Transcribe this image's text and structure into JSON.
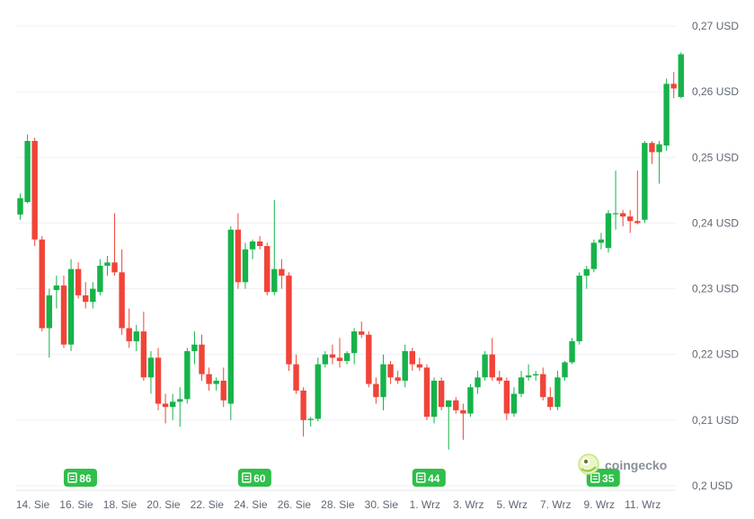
{
  "chart_data": {
    "type": "candlestick",
    "currency": "USD",
    "ylim": [
      0.2,
      0.27
    ],
    "y_ticks": [
      "0,2 USD",
      "0,21 USD",
      "0,22 USD",
      "0,23 USD",
      "0,24 USD",
      "0,25 USD",
      "0,26 USD",
      "0,27 USD"
    ],
    "y_tick_values": [
      0.2,
      0.21,
      0.22,
      0.23,
      0.24,
      0.25,
      0.26,
      0.27
    ],
    "x_ticks": [
      "14. Sie",
      "16. Sie",
      "18. Sie",
      "20. Sie",
      "22. Sie",
      "24. Sie",
      "26. Sie",
      "28. Sie",
      "30. Sie",
      "1. Wrz",
      "3. Wrz",
      "5. Wrz",
      "7. Wrz",
      "9. Wrz",
      "11. Wrz"
    ],
    "tick_every_candles": 6,
    "up_color": "#16b34a",
    "down_color": "#f04438",
    "candles": [
      [
        0.2413,
        0.2445,
        0.2405,
        0.2438
      ],
      [
        0.2432,
        0.2535,
        0.243,
        0.2525
      ],
      [
        0.2525,
        0.253,
        0.2365,
        0.2375
      ],
      [
        0.2375,
        0.238,
        0.2235,
        0.224
      ],
      [
        0.224,
        0.23,
        0.2195,
        0.229
      ],
      [
        0.2298,
        0.232,
        0.227,
        0.2305
      ],
      [
        0.2305,
        0.232,
        0.221,
        0.2215
      ],
      [
        0.2215,
        0.2345,
        0.2205,
        0.233
      ],
      [
        0.233,
        0.234,
        0.2285,
        0.229
      ],
      [
        0.229,
        0.231,
        0.227,
        0.228
      ],
      [
        0.228,
        0.231,
        0.227,
        0.23
      ],
      [
        0.2295,
        0.2345,
        0.229,
        0.2335
      ],
      [
        0.2335,
        0.235,
        0.232,
        0.234
      ],
      [
        0.234,
        0.2415,
        0.232,
        0.2325
      ],
      [
        0.2325,
        0.236,
        0.223,
        0.224
      ],
      [
        0.224,
        0.227,
        0.221,
        0.222
      ],
      [
        0.222,
        0.2245,
        0.2205,
        0.2235
      ],
      [
        0.2235,
        0.2265,
        0.216,
        0.2165
      ],
      [
        0.2165,
        0.2205,
        0.214,
        0.2195
      ],
      [
        0.2195,
        0.221,
        0.2115,
        0.2125
      ],
      [
        0.2125,
        0.214,
        0.2095,
        0.212
      ],
      [
        0.212,
        0.214,
        0.21,
        0.2128
      ],
      [
        0.2128,
        0.215,
        0.209,
        0.2132
      ],
      [
        0.2132,
        0.221,
        0.2125,
        0.2205
      ],
      [
        0.2205,
        0.2235,
        0.2185,
        0.2215
      ],
      [
        0.2215,
        0.223,
        0.216,
        0.217
      ],
      [
        0.217,
        0.218,
        0.2145,
        0.2155
      ],
      [
        0.2155,
        0.2165,
        0.2145,
        0.216
      ],
      [
        0.216,
        0.218,
        0.212,
        0.213
      ],
      [
        0.2125,
        0.2395,
        0.21,
        0.239
      ],
      [
        0.239,
        0.2415,
        0.23,
        0.231
      ],
      [
        0.231,
        0.237,
        0.23,
        0.236
      ],
      [
        0.236,
        0.2375,
        0.2345,
        0.2372
      ],
      [
        0.2372,
        0.238,
        0.236,
        0.2365
      ],
      [
        0.2365,
        0.237,
        0.229,
        0.2295
      ],
      [
        0.2295,
        0.2435,
        0.229,
        0.233
      ],
      [
        0.233,
        0.2345,
        0.23,
        0.232
      ],
      [
        0.232,
        0.2325,
        0.2175,
        0.2185
      ],
      [
        0.2185,
        0.22,
        0.214,
        0.2145
      ],
      [
        0.2145,
        0.215,
        0.2075,
        0.21
      ],
      [
        0.21,
        0.2105,
        0.209,
        0.2102
      ],
      [
        0.2102,
        0.2195,
        0.2098,
        0.2185
      ],
      [
        0.2185,
        0.2205,
        0.218,
        0.22
      ],
      [
        0.22,
        0.2215,
        0.2185,
        0.2195
      ],
      [
        0.2195,
        0.2225,
        0.218,
        0.219
      ],
      [
        0.219,
        0.2205,
        0.2185,
        0.2202
      ],
      [
        0.2202,
        0.224,
        0.2185,
        0.2235
      ],
      [
        0.2235,
        0.225,
        0.2225,
        0.223
      ],
      [
        0.223,
        0.2235,
        0.215,
        0.2155
      ],
      [
        0.2155,
        0.2165,
        0.2125,
        0.2135
      ],
      [
        0.2135,
        0.22,
        0.2115,
        0.2185
      ],
      [
        0.2185,
        0.219,
        0.2155,
        0.2165
      ],
      [
        0.2165,
        0.2175,
        0.2155,
        0.216
      ],
      [
        0.216,
        0.2215,
        0.215,
        0.2205
      ],
      [
        0.2205,
        0.221,
        0.2175,
        0.2185
      ],
      [
        0.2185,
        0.2195,
        0.2175,
        0.218
      ],
      [
        0.218,
        0.2185,
        0.21,
        0.2105
      ],
      [
        0.2105,
        0.2165,
        0.2095,
        0.216
      ],
      [
        0.216,
        0.2165,
        0.2115,
        0.212
      ],
      [
        0.212,
        0.2125,
        0.2055,
        0.213
      ],
      [
        0.213,
        0.2135,
        0.211,
        0.2115
      ],
      [
        0.2115,
        0.2125,
        0.207,
        0.211
      ],
      [
        0.211,
        0.2155,
        0.2105,
        0.215
      ],
      [
        0.215,
        0.2175,
        0.214,
        0.2165
      ],
      [
        0.2165,
        0.2205,
        0.216,
        0.22
      ],
      [
        0.22,
        0.2225,
        0.216,
        0.2165
      ],
      [
        0.2165,
        0.2175,
        0.2155,
        0.216
      ],
      [
        0.216,
        0.2165,
        0.21,
        0.211
      ],
      [
        0.211,
        0.215,
        0.2105,
        0.214
      ],
      [
        0.214,
        0.2175,
        0.2135,
        0.2165
      ],
      [
        0.2165,
        0.2185,
        0.216,
        0.2168
      ],
      [
        0.2168,
        0.2175,
        0.216,
        0.217
      ],
      [
        0.217,
        0.218,
        0.213,
        0.2135
      ],
      [
        0.2135,
        0.215,
        0.2115,
        0.212
      ],
      [
        0.212,
        0.2175,
        0.2115,
        0.2165
      ],
      [
        0.2165,
        0.219,
        0.216,
        0.2188
      ],
      [
        0.2188,
        0.2225,
        0.2185,
        0.222
      ],
      [
        0.222,
        0.2325,
        0.2215,
        0.232
      ],
      [
        0.232,
        0.2335,
        0.23,
        0.233
      ],
      [
        0.233,
        0.2375,
        0.2325,
        0.237
      ],
      [
        0.237,
        0.2385,
        0.236,
        0.2375
      ],
      [
        0.2362,
        0.242,
        0.2355,
        0.2415
      ],
      [
        0.2415,
        0.248,
        0.239,
        0.2415
      ],
      [
        0.2415,
        0.242,
        0.2395,
        0.241
      ],
      [
        0.241,
        0.242,
        0.2385,
        0.2403
      ],
      [
        0.2403,
        0.248,
        0.2398,
        0.24
      ],
      [
        0.2405,
        0.2525,
        0.24,
        0.2522
      ],
      [
        0.2522,
        0.2525,
        0.249,
        0.2508
      ],
      [
        0.2508,
        0.2525,
        0.246,
        0.252
      ],
      [
        0.2518,
        0.262,
        0.251,
        0.2612
      ],
      [
        0.2612,
        0.263,
        0.259,
        0.2605
      ],
      [
        0.2592,
        0.266,
        0.259,
        0.2657
      ]
    ],
    "volume_badges": [
      {
        "label": "86",
        "candle": 6
      },
      {
        "label": "60",
        "candle": 30
      },
      {
        "label": "44",
        "candle": 54
      },
      {
        "label": "35",
        "candle": 78
      }
    ],
    "grid": true
  },
  "branding": {
    "name": "coingecko",
    "logo_icon": "gecko-logo-icon"
  },
  "icons": {
    "badge_icon": "newspaper-icon"
  }
}
